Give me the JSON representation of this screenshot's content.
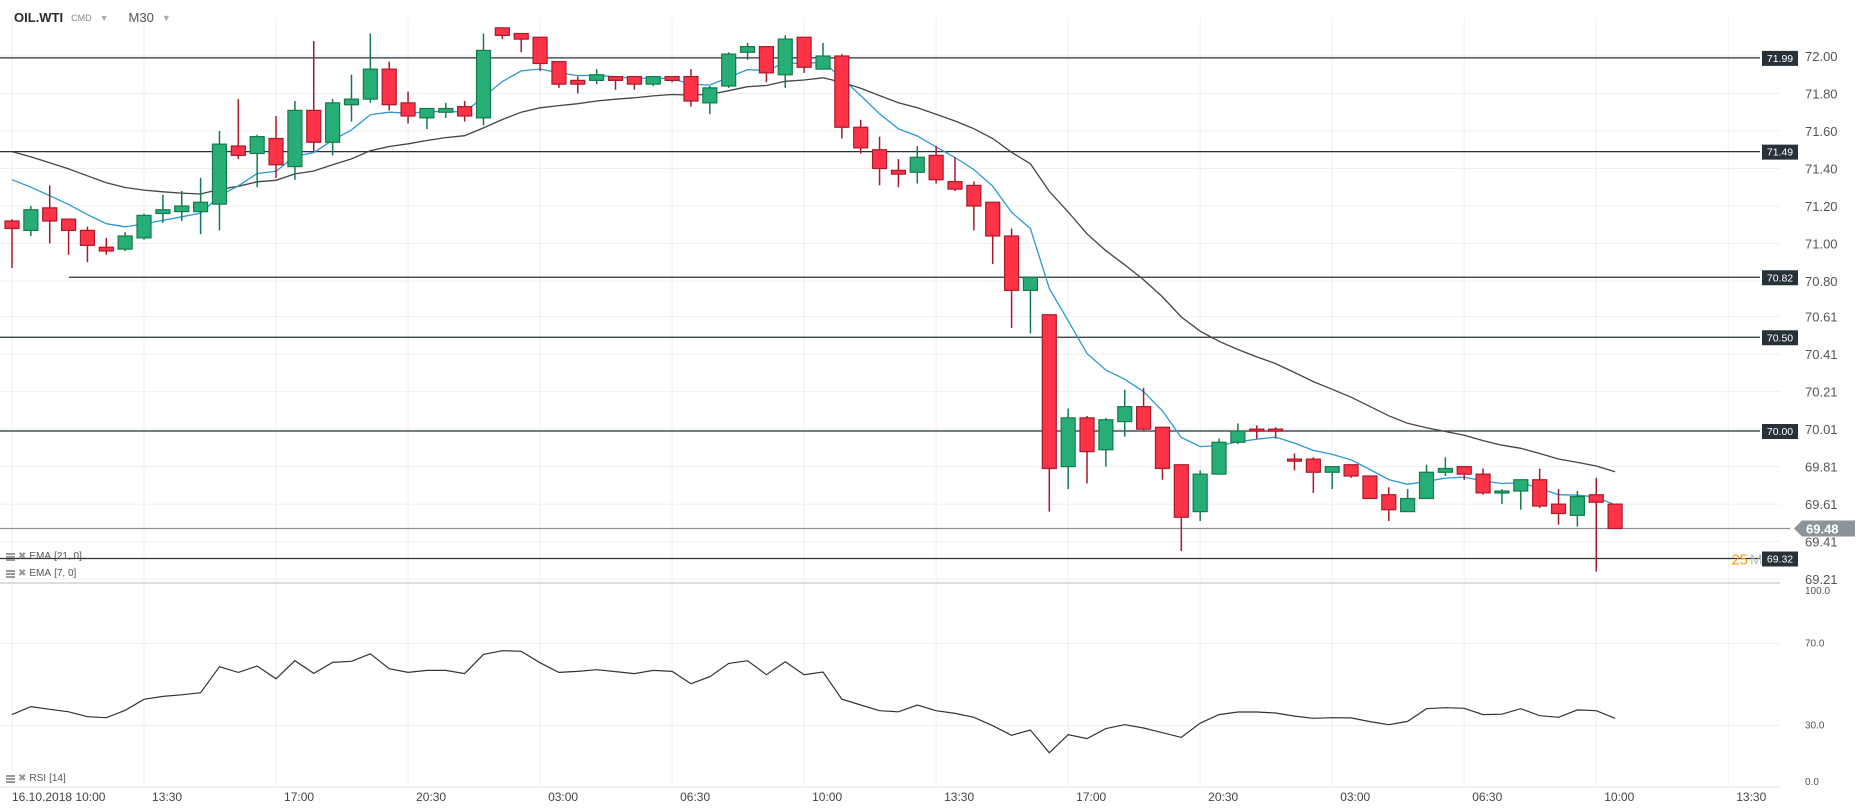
{
  "header": {
    "symbol": "OIL.WTI",
    "group": "CMD",
    "timeframe": "M30"
  },
  "indicators": [
    {
      "label": "EMA",
      "params": "[21, 0]",
      "color": "#444444"
    },
    {
      "label": "EMA",
      "params": "[7, 0]",
      "color": "#2c98d6"
    },
    {
      "label": "RSI",
      "params": "[14]",
      "color": "#333333"
    }
  ],
  "countdown": {
    "value": "25",
    "unit": "M",
    "color": "#ff9800"
  },
  "chart_data": [
    {
      "type": "candlestick",
      "ohlc_order": [
        "open",
        "high",
        "low",
        "close"
      ],
      "colors": {
        "up": "#27ae76",
        "down": "#ff3347"
      },
      "candles": [
        [
          71.12,
          71.13,
          70.87,
          71.08
        ],
        [
          71.07,
          71.2,
          71.04,
          71.18
        ],
        [
          71.19,
          71.31,
          71.0,
          71.12
        ],
        [
          71.13,
          71.13,
          70.94,
          71.07
        ],
        [
          71.07,
          71.09,
          70.9,
          70.99
        ],
        [
          70.98,
          71.03,
          70.94,
          70.96
        ],
        [
          70.97,
          71.06,
          70.96,
          71.04
        ],
        [
          71.03,
          71.16,
          71.02,
          71.15
        ],
        [
          71.16,
          71.26,
          71.11,
          71.18
        ],
        [
          71.17,
          71.28,
          71.12,
          71.2
        ],
        [
          71.17,
          71.35,
          71.05,
          71.22
        ],
        [
          71.21,
          71.6,
          71.07,
          71.53
        ],
        [
          71.52,
          71.77,
          71.45,
          71.47
        ],
        [
          71.48,
          71.58,
          71.3,
          71.57
        ],
        [
          71.56,
          71.68,
          71.35,
          71.42
        ],
        [
          71.41,
          71.76,
          71.34,
          71.71
        ],
        [
          71.71,
          72.08,
          71.49,
          71.54
        ],
        [
          71.54,
          71.77,
          71.47,
          71.75
        ],
        [
          71.74,
          71.9,
          71.65,
          71.77
        ],
        [
          71.77,
          72.12,
          71.75,
          71.93
        ],
        [
          71.93,
          71.97,
          71.71,
          71.74
        ],
        [
          71.75,
          71.81,
          71.64,
          71.68
        ],
        [
          71.67,
          71.72,
          71.61,
          71.72
        ],
        [
          71.7,
          71.75,
          71.67,
          71.72
        ],
        [
          71.73,
          71.76,
          71.65,
          71.68
        ],
        [
          71.67,
          72.12,
          71.63,
          72.03
        ],
        [
          72.15,
          72.15,
          72.09,
          72.11
        ],
        [
          72.12,
          72.12,
          72.02,
          72.09
        ],
        [
          72.1,
          72.1,
          71.92,
          71.96
        ],
        [
          71.97,
          71.97,
          71.83,
          71.85
        ],
        [
          71.87,
          71.89,
          71.8,
          71.85
        ],
        [
          71.87,
          71.93,
          71.85,
          71.9
        ],
        [
          71.89,
          71.89,
          71.82,
          71.87
        ],
        [
          71.89,
          71.89,
          71.82,
          71.85
        ],
        [
          71.85,
          71.89,
          71.84,
          71.89
        ],
        [
          71.89,
          71.89,
          71.86,
          71.87
        ],
        [
          71.89,
          71.93,
          71.73,
          71.76
        ],
        [
          71.75,
          71.84,
          71.69,
          71.83
        ],
        [
          71.84,
          72.02,
          71.83,
          72.01
        ],
        [
          72.02,
          72.07,
          71.98,
          72.05
        ],
        [
          72.05,
          72.05,
          71.86,
          71.91
        ],
        [
          71.9,
          72.11,
          71.83,
          72.09
        ],
        [
          72.1,
          72.1,
          71.91,
          71.94
        ],
        [
          71.93,
          72.07,
          71.93,
          72.0
        ],
        [
          72.0,
          72.01,
          71.56,
          71.62
        ],
        [
          71.62,
          71.66,
          71.48,
          71.51
        ],
        [
          71.5,
          71.57,
          71.31,
          71.4
        ],
        [
          71.39,
          71.45,
          71.3,
          71.37
        ],
        [
          71.38,
          71.52,
          71.32,
          71.46
        ],
        [
          71.47,
          71.52,
          71.32,
          71.34
        ],
        [
          71.33,
          71.46,
          71.28,
          71.29
        ],
        [
          71.31,
          71.33,
          71.07,
          71.2
        ],
        [
          71.22,
          71.22,
          70.89,
          71.04
        ],
        [
          71.04,
          71.08,
          70.55,
          70.75
        ],
        [
          70.75,
          70.82,
          70.52,
          70.82
        ],
        [
          70.62,
          70.62,
          69.57,
          69.8
        ],
        [
          69.81,
          70.12,
          69.69,
          70.07
        ],
        [
          70.07,
          70.08,
          69.72,
          69.89
        ],
        [
          69.9,
          70.07,
          69.81,
          70.06
        ],
        [
          70.05,
          70.22,
          69.97,
          70.13
        ],
        [
          70.13,
          70.23,
          70.0,
          70.01
        ],
        [
          70.02,
          70.02,
          69.74,
          69.8
        ],
        [
          69.82,
          69.82,
          69.36,
          69.54
        ],
        [
          69.57,
          69.79,
          69.52,
          69.77
        ],
        [
          69.77,
          69.96,
          69.77,
          69.94
        ],
        [
          69.94,
          70.04,
          69.93,
          70.0
        ],
        [
          70.01,
          70.03,
          69.96,
          70.0
        ],
        [
          70.01,
          70.02,
          69.96,
          70.0
        ],
        [
          69.85,
          69.88,
          69.79,
          69.84
        ],
        [
          69.85,
          69.86,
          69.67,
          69.78
        ],
        [
          69.78,
          69.81,
          69.69,
          69.81
        ],
        [
          69.82,
          69.82,
          69.75,
          69.76
        ],
        [
          69.76,
          69.76,
          69.64,
          69.64
        ],
        [
          69.66,
          69.7,
          69.52,
          69.58
        ],
        [
          69.57,
          69.69,
          69.57,
          69.64
        ],
        [
          69.64,
          69.82,
          69.64,
          69.78
        ],
        [
          69.78,
          69.86,
          69.76,
          69.8
        ],
        [
          69.81,
          69.81,
          69.74,
          69.77
        ],
        [
          69.77,
          69.8,
          69.66,
          69.67
        ],
        [
          69.67,
          69.69,
          69.61,
          69.68
        ],
        [
          69.68,
          69.74,
          69.58,
          69.74
        ],
        [
          69.74,
          69.8,
          69.59,
          69.6
        ],
        [
          69.61,
          69.69,
          69.5,
          69.56
        ],
        [
          69.55,
          69.68,
          69.49,
          69.65
        ],
        [
          69.66,
          69.75,
          69.25,
          69.62
        ],
        [
          69.61,
          69.61,
          69.48,
          69.48
        ]
      ],
      "overlays": [
        {
          "name": "EMA [21, 0]",
          "period": 21,
          "first_value": 71.49,
          "color": "#444444"
        },
        {
          "name": "EMA [7, 0]",
          "period": 7,
          "first_value": 71.34,
          "color": "#2c98d6"
        }
      ],
      "levels": [
        {
          "value": 71.99,
          "label": "71.99"
        },
        {
          "value": 71.49,
          "label": "71.49"
        },
        {
          "value": 70.82,
          "label": "70.82"
        },
        {
          "value": 70.5,
          "label": "70.50"
        },
        {
          "value": 70.0,
          "label": "70.00"
        },
        {
          "value": 69.32,
          "label": "69.32"
        }
      ],
      "current_price": {
        "value": 69.48,
        "label": "69.48",
        "color": "#8a9499"
      },
      "y_ticks": [
        "72.00",
        "71.80",
        "71.60",
        "71.40",
        "71.20",
        "71.00",
        "70.80",
        "70.61",
        "70.41",
        "70.21",
        "70.01",
        "69.81",
        "69.61",
        "69.41",
        "69.21"
      ],
      "ylim": [
        69.21,
        72.0
      ],
      "x_ticks": [
        "16.10.2018  10:00",
        "13:30",
        "17:00",
        "20:30",
        "03:00",
        "06:30",
        "10:00",
        "13:30",
        "17:00",
        "20:30",
        "03:00",
        "06:30",
        "10:00",
        "13:30"
      ],
      "grid": true
    },
    {
      "type": "line",
      "name": "RSI [14]",
      "ylim": [
        0,
        100
      ],
      "y_ticks": [
        "100.0",
        "70.0",
        "30.0",
        "0.0"
      ],
      "levels": [
        70,
        30
      ],
      "values": [
        35.3,
        39.2,
        37.9,
        36.7,
        34.3,
        33.8,
        37.4,
        42.8,
        44.2,
        45.0,
        46.0,
        58.7,
        55.9,
        59.0,
        52.8,
        61.6,
        55.4,
        60.8,
        61.3,
        65.0,
        57.7,
        55.9,
        56.9,
        56.9,
        55.3,
        64.7,
        66.5,
        66.2,
        60.6,
        55.9,
        56.4,
        57.2,
        56.3,
        55.3,
        56.9,
        56.4,
        50.4,
        53.8,
        60.3,
        61.6,
        54.8,
        61.1,
        54.8,
        56.1,
        42.9,
        40.0,
        37.2,
        36.7,
        40.0,
        37.2,
        35.9,
        34.0,
        29.9,
        25.2,
        27.8,
        16.7,
        25.5,
        23.6,
        28.5,
        30.4,
        28.8,
        26.5,
        24.2,
        31.1,
        35.3,
        36.6,
        36.6,
        36.1,
        34.6,
        33.5,
        33.8,
        33.7,
        31.9,
        30.4,
        32.0,
        38.2,
        38.7,
        38.4,
        35.3,
        35.5,
        38.2,
        34.8,
        34.0,
        37.6,
        37.2,
        33.5
      ],
      "color": "#333333"
    }
  ]
}
